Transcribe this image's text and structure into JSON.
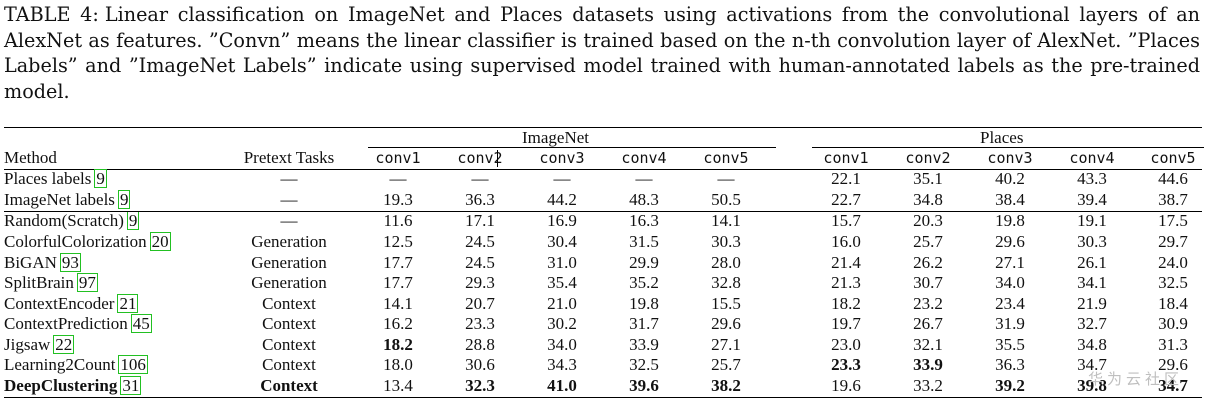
{
  "caption": {
    "label": "TABLE 4:",
    "text": "Linear classification on ImageNet and Places datasets using activations from the convolutional layers of an AlexNet as features. ”Convn” means the linear classifier is trained based on the n-th convolution layer of AlexNet. ”Places Labels” and ”ImageNet Labels” indicate using supervised model trained with human-annotated labels as the pre-trained model."
  },
  "groups": {
    "imagenet": "ImageNet",
    "places": "Places"
  },
  "header": {
    "method": "Method",
    "tasks": "Pretext Tasks",
    "imagenet": [
      "conv1",
      "conv2",
      "conv3",
      "conv4",
      "conv5"
    ],
    "places": [
      "conv1",
      "conv2",
      "conv3",
      "conv4",
      "conv5"
    ]
  },
  "rows": [
    {
      "method": "Places labels",
      "ref": "9",
      "task": "—",
      "imagenet": [
        "—",
        "—",
        "—",
        "—",
        "—"
      ],
      "places": [
        "22.1",
        "35.1",
        "40.2",
        "43.3",
        "44.6"
      ]
    },
    {
      "method": "ImageNet labels",
      "ref": "9",
      "task": "—",
      "imagenet": [
        "19.3",
        "36.3",
        "44.2",
        "48.3",
        "50.5"
      ],
      "places": [
        "22.7",
        "34.8",
        "38.4",
        "39.4",
        "38.7"
      ]
    },
    {
      "method": "Random(Scratch)",
      "ref": "9",
      "task": "—",
      "imagenet": [
        "11.6",
        "17.1",
        "16.9",
        "16.3",
        "14.1"
      ],
      "places": [
        "15.7",
        "20.3",
        "19.8",
        "19.1",
        "17.5"
      ]
    },
    {
      "method": "ColorfulColorization",
      "ref": "20",
      "task": "Generation",
      "imagenet": [
        "12.5",
        "24.5",
        "30.4",
        "31.5",
        "30.3"
      ],
      "places": [
        "16.0",
        "25.7",
        "29.6",
        "30.3",
        "29.7"
      ]
    },
    {
      "method": "BiGAN",
      "ref": "93",
      "task": "Generation",
      "imagenet": [
        "17.7",
        "24.5",
        "31.0",
        "29.9",
        "28.0"
      ],
      "places": [
        "21.4",
        "26.2",
        "27.1",
        "26.1",
        "24.0"
      ]
    },
    {
      "method": "SplitBrain",
      "ref": "97",
      "task": "Generation",
      "imagenet": [
        "17.7",
        "29.3",
        "35.4",
        "35.2",
        "32.8"
      ],
      "places": [
        "21.3",
        "30.7",
        "34.0",
        "34.1",
        "32.5"
      ]
    },
    {
      "method": "ContextEncoder",
      "ref": "21",
      "task": "Context",
      "imagenet": [
        "14.1",
        "20.7",
        "21.0",
        "19.8",
        "15.5"
      ],
      "places": [
        "18.2",
        "23.2",
        "23.4",
        "21.9",
        "18.4"
      ]
    },
    {
      "method": "ContextPrediction",
      "ref": "45",
      "task": "Context",
      "imagenet": [
        "16.2",
        "23.3",
        "30.2",
        "31.7",
        "29.6"
      ],
      "places": [
        "19.7",
        "26.7",
        "31.9",
        "32.7",
        "30.9"
      ]
    },
    {
      "method": "Jigsaw",
      "ref": "22",
      "task": "Context",
      "imagenet": [
        "18.2",
        "28.8",
        "34.0",
        "33.9",
        "27.1"
      ],
      "places": [
        "23.0",
        "32.1",
        "35.5",
        "34.8",
        "31.3"
      ]
    },
    {
      "method": "Learning2Count",
      "ref": "106",
      "task": "Context",
      "imagenet": [
        "18.0",
        "30.6",
        "34.3",
        "32.5",
        "25.7"
      ],
      "places": [
        "23.3",
        "33.9",
        "36.3",
        "34.7",
        "29.6"
      ]
    },
    {
      "method": "DeepClustering",
      "ref": "31",
      "task": "Context",
      "imagenet": [
        "13.4",
        "32.3",
        "41.0",
        "39.6",
        "38.2"
      ],
      "places": [
        "19.6",
        "33.2",
        "39.2",
        "39.8",
        "34.7"
      ]
    }
  ],
  "watermark": "华为云社区"
}
